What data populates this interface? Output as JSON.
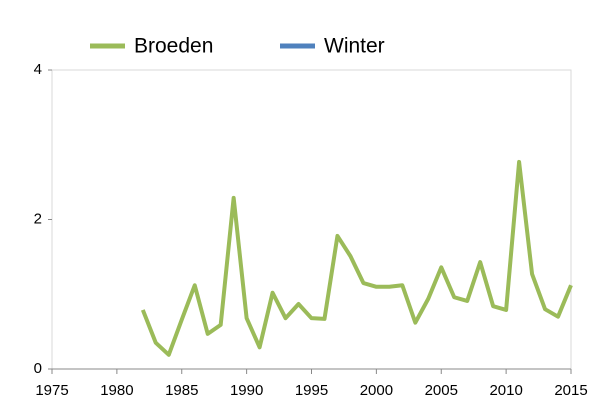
{
  "chart_data": {
    "type": "line",
    "x": [
      1982,
      1983,
      1984,
      1985,
      1986,
      1987,
      1988,
      1989,
      1990,
      1991,
      1992,
      1993,
      1994,
      1995,
      1996,
      1997,
      1998,
      1999,
      2000,
      2001,
      2002,
      2003,
      2004,
      2005,
      2006,
      2007,
      2008,
      2009,
      2010,
      2011,
      2012,
      2013,
      2014,
      2015
    ],
    "series": [
      {
        "name": "Broeden",
        "color": "#9bbb59",
        "values": [
          0.79,
          0.35,
          0.19,
          0.66,
          1.12,
          0.47,
          0.59,
          2.29,
          0.68,
          0.29,
          1.02,
          0.68,
          0.87,
          0.68,
          0.67,
          1.78,
          1.51,
          1.15,
          1.1,
          1.1,
          1.12,
          0.62,
          0.94,
          1.36,
          0.96,
          0.91,
          1.43,
          0.84,
          0.79,
          2.77,
          1.27,
          0.8,
          0.7,
          1.12
        ]
      },
      {
        "name": "Winter",
        "color": "#4f81bd",
        "values": [
          null,
          null,
          null,
          null,
          null,
          null,
          null,
          null,
          null,
          null,
          null,
          null,
          null,
          null,
          null,
          null,
          null,
          null,
          null,
          null,
          null,
          null,
          null,
          null,
          null,
          null,
          null,
          null,
          null,
          null,
          null,
          null,
          null,
          null
        ]
      }
    ],
    "xlim": [
      1975,
      2015
    ],
    "xticks": [
      1975,
      1980,
      1985,
      1990,
      1995,
      2000,
      2005,
      2010,
      2015
    ],
    "ylim": [
      0,
      4
    ],
    "yticks": [
      0,
      2,
      4
    ],
    "grid": false,
    "legend": "top"
  }
}
